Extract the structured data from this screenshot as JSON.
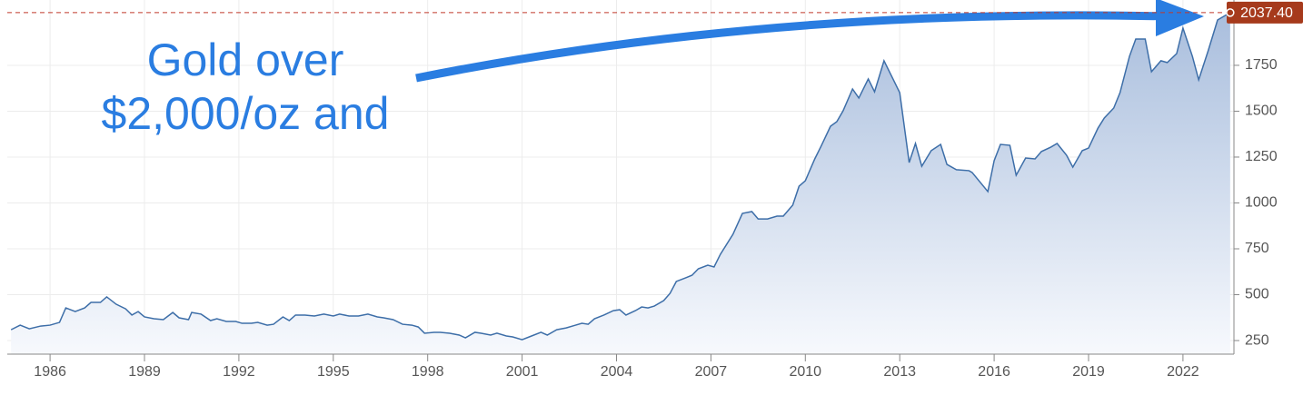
{
  "chart_data": {
    "type": "area",
    "annotation": [
      "Gold over",
      "$2,000/oz and"
    ],
    "x": [
      1984.76,
      1985.05,
      1985.34,
      1985.7,
      1986.0,
      1986.3,
      1986.5,
      1986.8,
      1987.1,
      1987.3,
      1987.6,
      1987.8,
      1988.1,
      1988.4,
      1988.6,
      1988.8,
      1989.0,
      1989.3,
      1989.6,
      1989.9,
      1990.1,
      1990.4,
      1990.5,
      1990.8,
      1991.1,
      1991.3,
      1991.6,
      1991.9,
      1992.1,
      1992.4,
      1992.6,
      1992.9,
      1993.1,
      1993.4,
      1993.6,
      1993.8,
      1994.1,
      1994.4,
      1994.7,
      1995.0,
      1995.2,
      1995.5,
      1995.8,
      1996.1,
      1996.4,
      1996.6,
      1996.9,
      1997.2,
      1997.5,
      1997.7,
      1997.9,
      1998.2,
      1998.4,
      1998.7,
      1999.0,
      1999.2,
      1999.5,
      1999.7,
      2000.0,
      2000.2,
      2000.5,
      2000.7,
      2001.0,
      2001.3,
      2001.6,
      2001.8,
      2002.1,
      2002.4,
      2002.7,
      2002.9,
      2003.1,
      2003.3,
      2003.6,
      2003.9,
      2004.1,
      2004.3,
      2004.6,
      2004.8,
      2005.0,
      2005.2,
      2005.5,
      2005.7,
      2005.9,
      2006.2,
      2006.4,
      2006.6,
      2006.9,
      2007.1,
      2007.3,
      2007.7,
      2008.0,
      2008.3,
      2008.5,
      2008.8,
      2009.1,
      2009.3,
      2009.6,
      2009.8,
      2010.0,
      2010.3,
      2010.5,
      2010.8,
      2011.0,
      2011.2,
      2011.5,
      2011.7,
      2012.0,
      2012.2,
      2012.5,
      2012.8,
      2013.0,
      2013.3,
      2013.5,
      2013.7,
      2014.0,
      2014.3,
      2014.5,
      2014.8,
      2015.2,
      2015.3,
      2015.8,
      2016.0,
      2016.2,
      2016.5,
      2016.7,
      2017.0,
      2017.3,
      2017.5,
      2017.8,
      2018.0,
      2018.3,
      2018.5,
      2018.8,
      2019.0,
      2019.3,
      2019.5,
      2019.8,
      2020.0,
      2020.3,
      2020.5,
      2020.8,
      2021.0,
      2021.3,
      2021.5,
      2021.8,
      2022.0,
      2022.3,
      2022.5,
      2022.8,
      2023.1,
      2023.5
    ],
    "values": [
      309,
      334,
      314,
      329,
      334,
      349,
      428,
      408,
      428,
      458,
      458,
      488,
      448,
      423,
      389,
      408,
      379,
      369,
      364,
      403,
      374,
      364,
      403,
      394,
      359,
      369,
      354,
      354,
      344,
      344,
      349,
      334,
      339,
      379,
      359,
      389,
      389,
      384,
      394,
      384,
      394,
      384,
      384,
      394,
      379,
      374,
      364,
      339,
      334,
      324,
      290,
      295,
      295,
      290,
      280,
      265,
      295,
      290,
      280,
      290,
      275,
      270,
      255,
      275,
      295,
      280,
      309,
      319,
      334,
      344,
      339,
      369,
      389,
      413,
      418,
      389,
      413,
      433,
      428,
      438,
      468,
      507,
      572,
      592,
      606,
      641,
      661,
      651,
      720,
      829,
      943,
      953,
      913,
      913,
      928,
      928,
      988,
      1091,
      1121,
      1240,
      1309,
      1418,
      1443,
      1502,
      1621,
      1572,
      1676,
      1606,
      1775,
      1671,
      1601,
      1220,
      1324,
      1200,
      1285,
      1319,
      1210,
      1181,
      1176,
      1166,
      1062,
      1230,
      1319,
      1314,
      1151,
      1245,
      1240,
      1280,
      1304,
      1324,
      1260,
      1195,
      1285,
      1299,
      1408,
      1463,
      1517,
      1601,
      1799,
      1893,
      1893,
      1715,
      1775,
      1765,
      1814,
      1953,
      1799,
      1671,
      1829,
      1997,
      2037.4
    ],
    "value_labels": {
      "last": "2037.40"
    },
    "color": "#3d6ea8",
    "xlim": [
      1984.64,
      2023.62
    ],
    "xticks": [
      1986,
      1989,
      1992,
      1995,
      1998,
      2001,
      2004,
      2007,
      2010,
      2013,
      2016,
      2019,
      2022
    ],
    "ylim": [
      176,
      2106
    ],
    "yticks": [
      250,
      500,
      750,
      1000,
      1250,
      1500,
      1750
    ],
    "grid": true
  }
}
